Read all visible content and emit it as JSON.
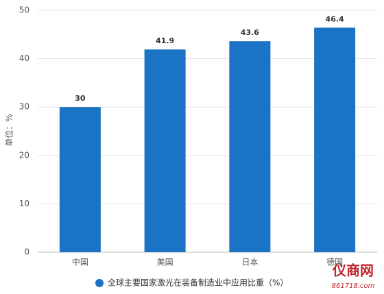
{
  "chart_data": {
    "type": "bar",
    "y_label": "单位：%",
    "categories": [
      "中国",
      "美国",
      "日本",
      "德国"
    ],
    "series": [
      {
        "name": "全球主要国家激光在装备制造业中应用比重（%）",
        "color": "#1a73c4",
        "values": [
          30,
          41.9,
          43.6,
          46.4
        ]
      }
    ],
    "ylim": [
      0,
      50
    ],
    "yticks": [
      0,
      10,
      20,
      30,
      40,
      50
    ],
    "grid": true,
    "legend": "bottom"
  },
  "watermark": {
    "name": "仪商网",
    "url": "861718.com"
  }
}
